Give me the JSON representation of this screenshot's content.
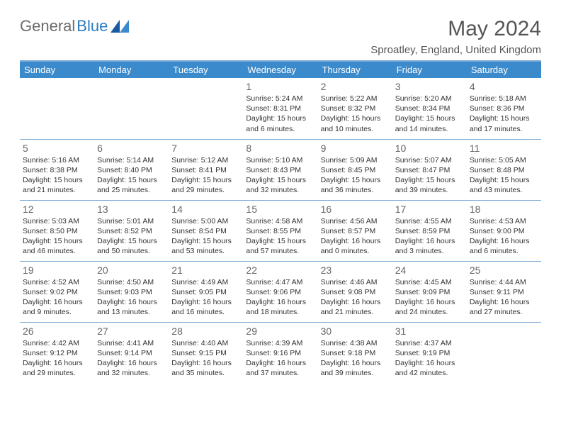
{
  "logo": {
    "text1": "General",
    "text2": "Blue"
  },
  "title": "May 2024",
  "location": "Sproatley, England, United Kingdom",
  "colors": {
    "header_bg": "#3b8acb",
    "header_text": "#ffffff",
    "line": "#7aa8d4",
    "text": "#333333",
    "title": "#555555",
    "logo_gray": "#6b6b6b",
    "logo_blue": "#2b7cc0",
    "bg": "#ffffff"
  },
  "dayHeaders": [
    "Sunday",
    "Monday",
    "Tuesday",
    "Wednesday",
    "Thursday",
    "Friday",
    "Saturday"
  ],
  "weeks": [
    [
      null,
      null,
      null,
      {
        "n": "1",
        "sr": "5:24 AM",
        "ss": "8:31 PM",
        "dh": 15,
        "dm": 6
      },
      {
        "n": "2",
        "sr": "5:22 AM",
        "ss": "8:32 PM",
        "dh": 15,
        "dm": 10
      },
      {
        "n": "3",
        "sr": "5:20 AM",
        "ss": "8:34 PM",
        "dh": 15,
        "dm": 14
      },
      {
        "n": "4",
        "sr": "5:18 AM",
        "ss": "8:36 PM",
        "dh": 15,
        "dm": 17
      }
    ],
    [
      {
        "n": "5",
        "sr": "5:16 AM",
        "ss": "8:38 PM",
        "dh": 15,
        "dm": 21
      },
      {
        "n": "6",
        "sr": "5:14 AM",
        "ss": "8:40 PM",
        "dh": 15,
        "dm": 25
      },
      {
        "n": "7",
        "sr": "5:12 AM",
        "ss": "8:41 PM",
        "dh": 15,
        "dm": 29
      },
      {
        "n": "8",
        "sr": "5:10 AM",
        "ss": "8:43 PM",
        "dh": 15,
        "dm": 32
      },
      {
        "n": "9",
        "sr": "5:09 AM",
        "ss": "8:45 PM",
        "dh": 15,
        "dm": 36
      },
      {
        "n": "10",
        "sr": "5:07 AM",
        "ss": "8:47 PM",
        "dh": 15,
        "dm": 39
      },
      {
        "n": "11",
        "sr": "5:05 AM",
        "ss": "8:48 PM",
        "dh": 15,
        "dm": 43
      }
    ],
    [
      {
        "n": "12",
        "sr": "5:03 AM",
        "ss": "8:50 PM",
        "dh": 15,
        "dm": 46
      },
      {
        "n": "13",
        "sr": "5:01 AM",
        "ss": "8:52 PM",
        "dh": 15,
        "dm": 50
      },
      {
        "n": "14",
        "sr": "5:00 AM",
        "ss": "8:54 PM",
        "dh": 15,
        "dm": 53
      },
      {
        "n": "15",
        "sr": "4:58 AM",
        "ss": "8:55 PM",
        "dh": 15,
        "dm": 57
      },
      {
        "n": "16",
        "sr": "4:56 AM",
        "ss": "8:57 PM",
        "dh": 16,
        "dm": 0
      },
      {
        "n": "17",
        "sr": "4:55 AM",
        "ss": "8:59 PM",
        "dh": 16,
        "dm": 3
      },
      {
        "n": "18",
        "sr": "4:53 AM",
        "ss": "9:00 PM",
        "dh": 16,
        "dm": 6
      }
    ],
    [
      {
        "n": "19",
        "sr": "4:52 AM",
        "ss": "9:02 PM",
        "dh": 16,
        "dm": 9
      },
      {
        "n": "20",
        "sr": "4:50 AM",
        "ss": "9:03 PM",
        "dh": 16,
        "dm": 13
      },
      {
        "n": "21",
        "sr": "4:49 AM",
        "ss": "9:05 PM",
        "dh": 16,
        "dm": 16
      },
      {
        "n": "22",
        "sr": "4:47 AM",
        "ss": "9:06 PM",
        "dh": 16,
        "dm": 18
      },
      {
        "n": "23",
        "sr": "4:46 AM",
        "ss": "9:08 PM",
        "dh": 16,
        "dm": 21
      },
      {
        "n": "24",
        "sr": "4:45 AM",
        "ss": "9:09 PM",
        "dh": 16,
        "dm": 24
      },
      {
        "n": "25",
        "sr": "4:44 AM",
        "ss": "9:11 PM",
        "dh": 16,
        "dm": 27
      }
    ],
    [
      {
        "n": "26",
        "sr": "4:42 AM",
        "ss": "9:12 PM",
        "dh": 16,
        "dm": 29
      },
      {
        "n": "27",
        "sr": "4:41 AM",
        "ss": "9:14 PM",
        "dh": 16,
        "dm": 32
      },
      {
        "n": "28",
        "sr": "4:40 AM",
        "ss": "9:15 PM",
        "dh": 16,
        "dm": 35
      },
      {
        "n": "29",
        "sr": "4:39 AM",
        "ss": "9:16 PM",
        "dh": 16,
        "dm": 37
      },
      {
        "n": "30",
        "sr": "4:38 AM",
        "ss": "9:18 PM",
        "dh": 16,
        "dm": 39
      },
      {
        "n": "31",
        "sr": "4:37 AM",
        "ss": "9:19 PM",
        "dh": 16,
        "dm": 42
      },
      null
    ]
  ]
}
